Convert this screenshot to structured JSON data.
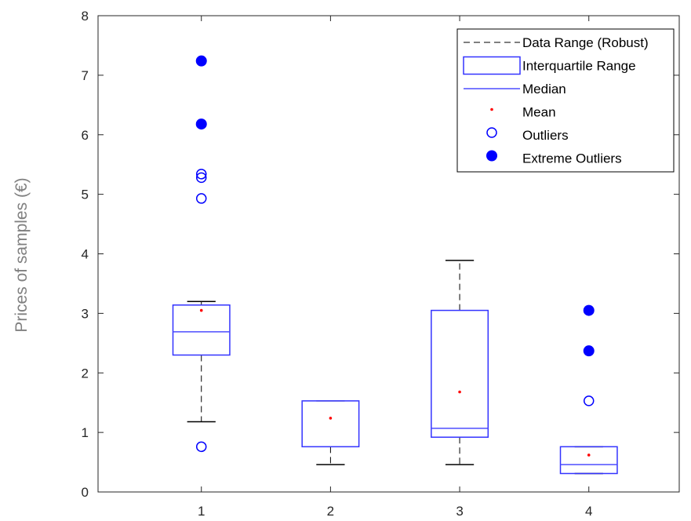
{
  "chart_data": {
    "type": "box",
    "title": "",
    "xlabel": "",
    "ylabel": "Prices of samples (€)",
    "categories": [
      "1",
      "2",
      "3",
      "4"
    ],
    "x_ticks": [
      1,
      2,
      3,
      4
    ],
    "xlim": [
      0.2,
      4.7
    ],
    "ylim": [
      0,
      8
    ],
    "y_ticks": [
      0,
      1,
      2,
      3,
      4,
      5,
      6,
      7,
      8
    ],
    "y_tick_labels": [
      "0",
      "1",
      "2",
      "3",
      "4",
      "5",
      "6",
      "7",
      "8"
    ],
    "grid": false,
    "legend_position": "top-right",
    "legend": [
      {
        "key": "range",
        "label": "Data Range (Robust)"
      },
      {
        "key": "iqr",
        "label": "Interquartile Range"
      },
      {
        "key": "median",
        "label": "Median"
      },
      {
        "key": "mean",
        "label": "Mean"
      },
      {
        "key": "outlier",
        "label": "Outliers"
      },
      {
        "key": "extreme",
        "label": "Extreme Outliers"
      }
    ],
    "colors": {
      "box": "#3333ff",
      "median": "#4d4dff",
      "whisker": "#000000",
      "mean": "#ff0000",
      "outlier": "#0000ff"
    },
    "boxes": [
      {
        "x": 1,
        "whisker_low": 1.18,
        "q1": 2.3,
        "median": 2.69,
        "q3": 3.14,
        "whisker_high": 3.2,
        "mean": 3.05,
        "outliers": [
          0.76,
          4.93,
          5.28,
          5.34
        ],
        "extreme_outliers": [
          6.18,
          7.24
        ]
      },
      {
        "x": 2,
        "whisker_low": 0.46,
        "q1": 0.76,
        "median": 1.53,
        "q3": 1.53,
        "whisker_high": 1.53,
        "mean": 1.24,
        "outliers": [],
        "extreme_outliers": []
      },
      {
        "x": 3,
        "whisker_low": 0.46,
        "q1": 0.92,
        "median": 1.07,
        "q3": 3.05,
        "whisker_high": 3.89,
        "mean": 1.68,
        "outliers": [],
        "extreme_outliers": []
      },
      {
        "x": 4,
        "whisker_low": 0.31,
        "q1": 0.31,
        "median": 0.46,
        "q3": 0.76,
        "whisker_high": 0.76,
        "mean": 0.62,
        "outliers": [
          1.53
        ],
        "extreme_outliers": [
          2.37,
          3.05
        ]
      }
    ]
  }
}
